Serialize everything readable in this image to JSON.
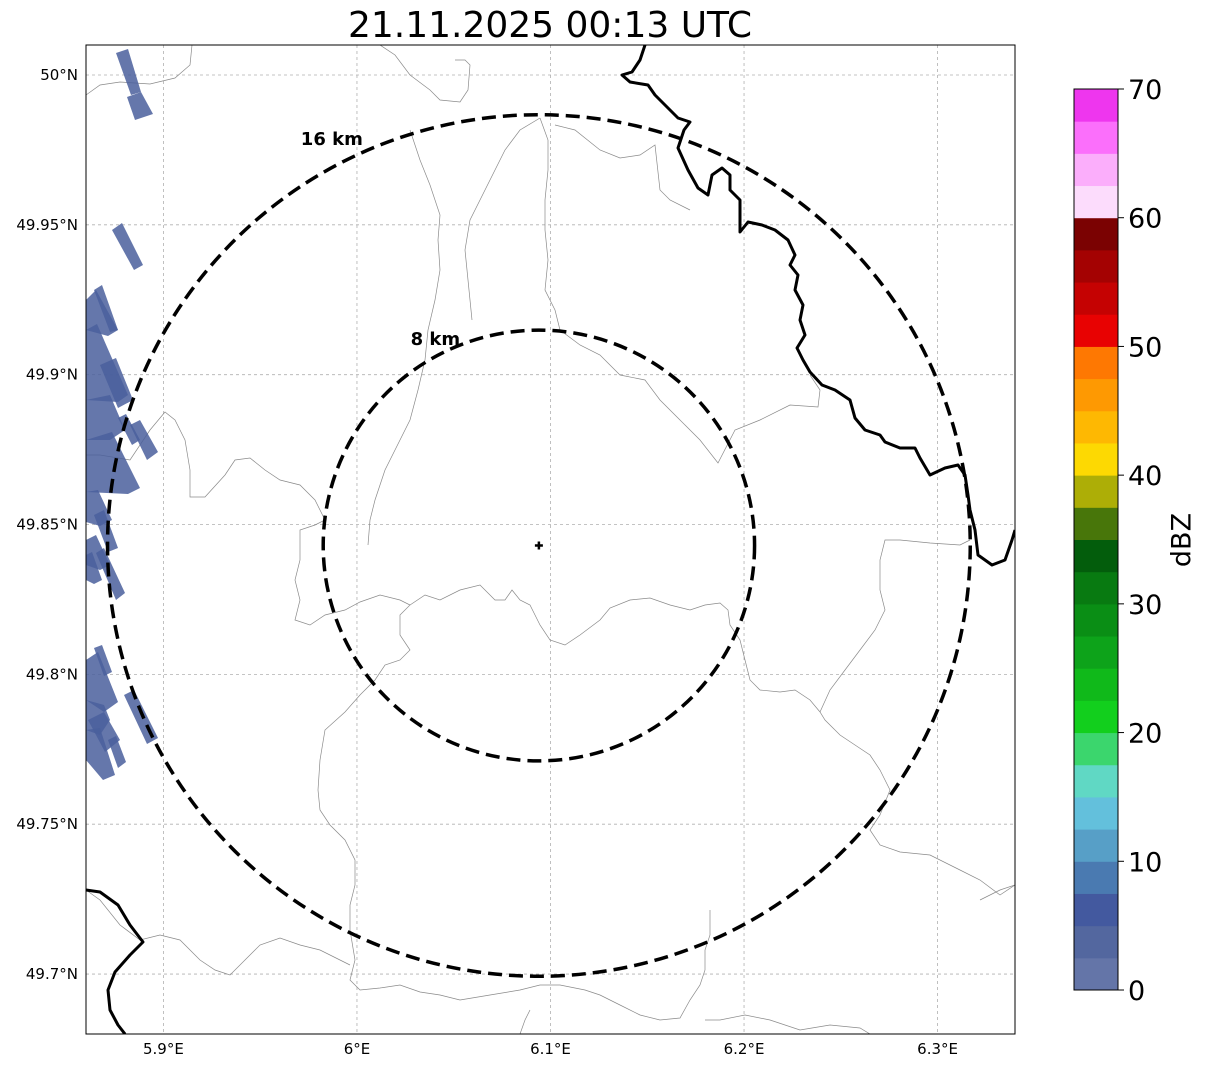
{
  "title": "21.11.2025 00:13 UTC",
  "map": {
    "lon_range": [
      5.86,
      6.34
    ],
    "lat_range": [
      49.68,
      50.01
    ],
    "lon_ticks": [
      {
        "value": 5.9,
        "label": "5.9°E"
      },
      {
        "value": 6.0,
        "label": "6°E"
      },
      {
        "value": 6.1,
        "label": "6.1°E"
      },
      {
        "value": 6.2,
        "label": "6.2°E"
      },
      {
        "value": 6.3,
        "label": "6.3°E"
      }
    ],
    "lat_ticks": [
      {
        "value": 50.0,
        "label": "50°N"
      },
      {
        "value": 49.95,
        "label": "49.95°N"
      },
      {
        "value": 49.9,
        "label": "49.9°N"
      },
      {
        "value": 49.85,
        "label": "49.85°N"
      },
      {
        "value": 49.8,
        "label": "49.8°N"
      },
      {
        "value": 49.75,
        "label": "49.75°N"
      },
      {
        "value": 49.7,
        "label": "49.7°N"
      }
    ],
    "radar_site": {
      "lon": 6.094,
      "lat": 49.843,
      "marker": "plus"
    },
    "range_rings": [
      {
        "radius_km": 8,
        "label": "8 km"
      },
      {
        "radius_km": 16,
        "label": "16 km"
      }
    ],
    "border_color": "#000000",
    "boundary_color": "#808080",
    "echo_color": "#4a5f9c"
  },
  "colorbar": {
    "label": "dBZ",
    "ticks": [
      "0",
      "10",
      "20",
      "30",
      "40",
      "50",
      "60",
      "70"
    ],
    "min": 0,
    "max": 70,
    "step": 2.5,
    "colors": [
      "#6475a8",
      "#53679f",
      "#43599f",
      "#4a7ab1",
      "#579fc7",
      "#63c0dc",
      "#60d8c4",
      "#3bd66d",
      "#12cf1d",
      "#10b91a",
      "#0da31a",
      "#0a8e15",
      "#087a11",
      "#035d0c",
      "#48760a",
      "#adae06",
      "#fdd902",
      "#feb802",
      "#fe9902",
      "#fe7802",
      "#e80202",
      "#c50202",
      "#a40202",
      "#7b0202",
      "#fcdcfc",
      "#fbaefb",
      "#fb6ffb",
      "#ee36ee"
    ]
  }
}
